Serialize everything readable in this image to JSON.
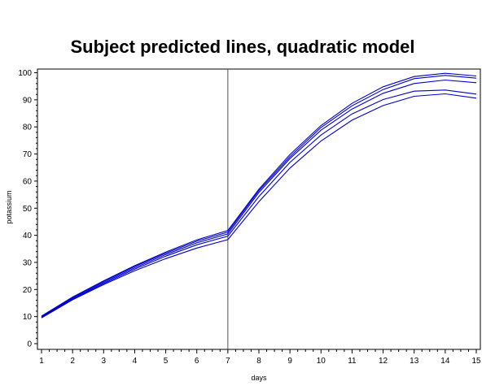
{
  "chart_data": {
    "type": "line",
    "title": "Subject predicted lines, quadratic model",
    "xlabel": "days",
    "ylabel": "potassium",
    "xlim": [
      1,
      15
    ],
    "ylim": [
      0,
      101
    ],
    "xticks": [
      1,
      2,
      3,
      4,
      5,
      6,
      7,
      8,
      9,
      10,
      11,
      12,
      13,
      14,
      15
    ],
    "yticks": [
      0,
      10,
      20,
      30,
      40,
      50,
      60,
      70,
      80,
      90,
      100
    ],
    "reference_line_x": 7,
    "line_color": "#0000cc",
    "reference_line_color": "#555555",
    "grid": false,
    "x": [
      1,
      2,
      3,
      4,
      5,
      6,
      7,
      8,
      9,
      10,
      11,
      12,
      13,
      14,
      15
    ],
    "series": [
      {
        "values": [
          10.2,
          17.2,
          23.2,
          28.8,
          33.8,
          38.3,
          41.8,
          57.0,
          69.8,
          80.5,
          88.7,
          94.8,
          98.6,
          99.8,
          98.8
        ]
      },
      {
        "values": [
          10.0,
          17.0,
          23.0,
          28.5,
          33.4,
          37.8,
          41.2,
          56.5,
          69.0,
          79.8,
          87.8,
          93.8,
          97.8,
          99.0,
          98.0
        ]
      },
      {
        "values": [
          9.8,
          16.7,
          22.6,
          28.0,
          32.9,
          37.2,
          40.5,
          55.8,
          68.3,
          78.8,
          86.6,
          92.4,
          96.0,
          97.3,
          96.3
        ]
      },
      {
        "values": [
          9.7,
          16.5,
          22.2,
          27.5,
          32.3,
          36.5,
          39.7,
          54.3,
          66.9,
          77.0,
          84.8,
          90.1,
          93.2,
          93.6,
          92.1
        ]
      },
      {
        "values": [
          9.5,
          16.2,
          21.8,
          26.9,
          31.4,
          35.3,
          38.4,
          52.4,
          64.8,
          74.8,
          82.5,
          87.9,
          91.3,
          92.2,
          90.6
        ]
      }
    ]
  }
}
